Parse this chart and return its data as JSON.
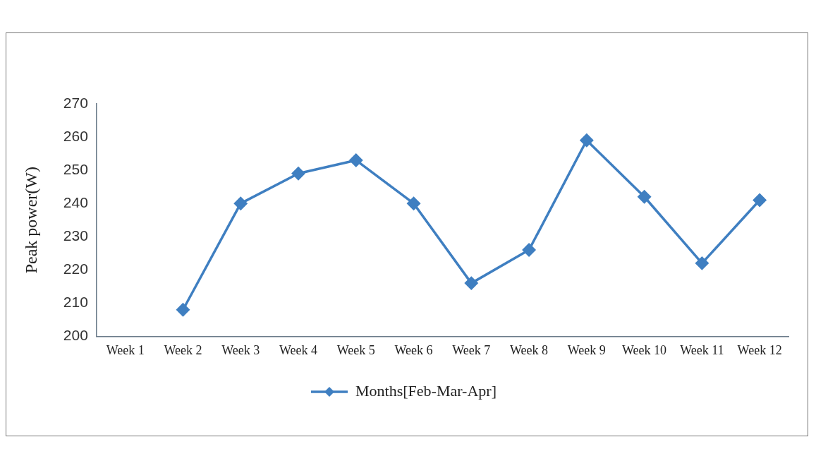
{
  "chart_data": {
    "type": "line",
    "ylabel": "Peak power(W)",
    "categories": [
      "Week 1",
      "Week 2",
      "Week 3",
      "Week 4",
      "Week 5",
      "Week 6",
      "Week 7",
      "Week 8",
      "Week 9",
      "Week 10",
      "Week 11",
      "Week 12"
    ],
    "series": [
      {
        "name": "Months[Feb-Mar-Apr]",
        "color": "#3f7fc1",
        "values": [
          null,
          208,
          240,
          249,
          253,
          240,
          216,
          226,
          259,
          242,
          222,
          241
        ]
      }
    ],
    "ylim": [
      200,
      270
    ],
    "yticks": [
      200,
      210,
      220,
      230,
      240,
      250,
      260,
      270
    ],
    "grid": false,
    "legend": "bottom",
    "marker": "diamond",
    "line_style": "solid"
  }
}
